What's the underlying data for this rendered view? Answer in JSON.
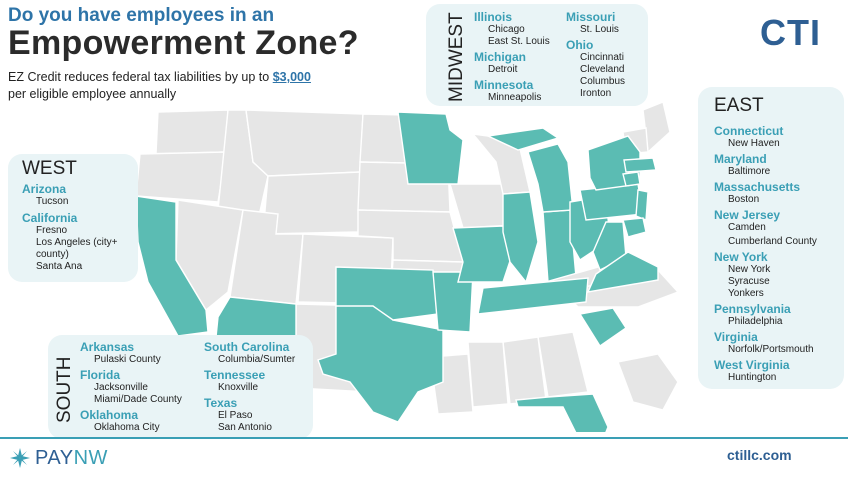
{
  "header": {
    "line1": "Do you have employees in an",
    "line2": "Empowerment Zone?",
    "subtitle_prefix": "EZ Credit reduces federal tax liabilities by up to ",
    "subtitle_amount": "$3,000",
    "subtitle_suffix": "per eligible employee annually"
  },
  "brand": {
    "cti_logo": "CTI",
    "paynw_left": "PAY",
    "paynw_right": "NW",
    "website": "ctillc.com"
  },
  "colors": {
    "accent": "#3a9fb5",
    "highlight_state": "#5bbcb3",
    "other_state": "#e6e6e6",
    "panel": "#e9f4f6",
    "brand_blue": "#2e5f93"
  },
  "regions": {
    "west": {
      "title": "WEST",
      "states": [
        {
          "name": "Arizona",
          "cities": [
            "Tucson"
          ]
        },
        {
          "name": "California",
          "cities": [
            "Fresno",
            "Los Angeles (city+",
            "county)",
            "Santa Ana"
          ]
        }
      ]
    },
    "midwest": {
      "title": "MIDWEST",
      "col1": [
        {
          "name": "Illinois",
          "cities": [
            "Chicago",
            "East St. Louis"
          ]
        },
        {
          "name": "Michigan",
          "cities": [
            "Detroit"
          ]
        },
        {
          "name": "Minnesota",
          "cities": [
            "Minneapolis"
          ]
        }
      ],
      "col2": [
        {
          "name": "Missouri",
          "cities": [
            "St. Louis"
          ]
        },
        {
          "name": "Ohio",
          "cities": [
            "Cincinnati",
            "Cleveland",
            "Columbus",
            "Ironton"
          ]
        }
      ]
    },
    "south": {
      "title": "SOUTH",
      "col1": [
        {
          "name": "Arkansas",
          "cities": [
            "Pulaski County"
          ]
        },
        {
          "name": "Florida",
          "cities": [
            "Jacksonville",
            "Miami/Dade County"
          ]
        },
        {
          "name": "Oklahoma",
          "cities": [
            "Oklahoma City"
          ]
        }
      ],
      "col2": [
        {
          "name": "South Carolina",
          "cities": [
            "Columbia/Sumter"
          ]
        },
        {
          "name": "Tennessee",
          "cities": [
            "Knoxville"
          ]
        },
        {
          "name": "Texas",
          "cities": [
            "El Paso",
            "San Antonio"
          ]
        }
      ]
    },
    "east": {
      "title": "EAST",
      "states": [
        {
          "name": "Connecticut",
          "cities": [
            "New Haven"
          ]
        },
        {
          "name": "Maryland",
          "cities": [
            "Baltimore"
          ]
        },
        {
          "name": "Massachusetts",
          "cities": [
            "Boston"
          ]
        },
        {
          "name": "New Jersey",
          "cities": [
            "Camden",
            "Cumberland County"
          ]
        },
        {
          "name": "New York",
          "cities": [
            "New York",
            "Syracuse",
            "Yonkers"
          ]
        },
        {
          "name": "Pennsylvania",
          "cities": [
            "Philadelphia"
          ]
        },
        {
          "name": "Virginia",
          "cities": [
            "Norfolk/Portsmouth"
          ]
        },
        {
          "name": "West Virginia",
          "cities": [
            "Huntington"
          ]
        }
      ]
    }
  }
}
